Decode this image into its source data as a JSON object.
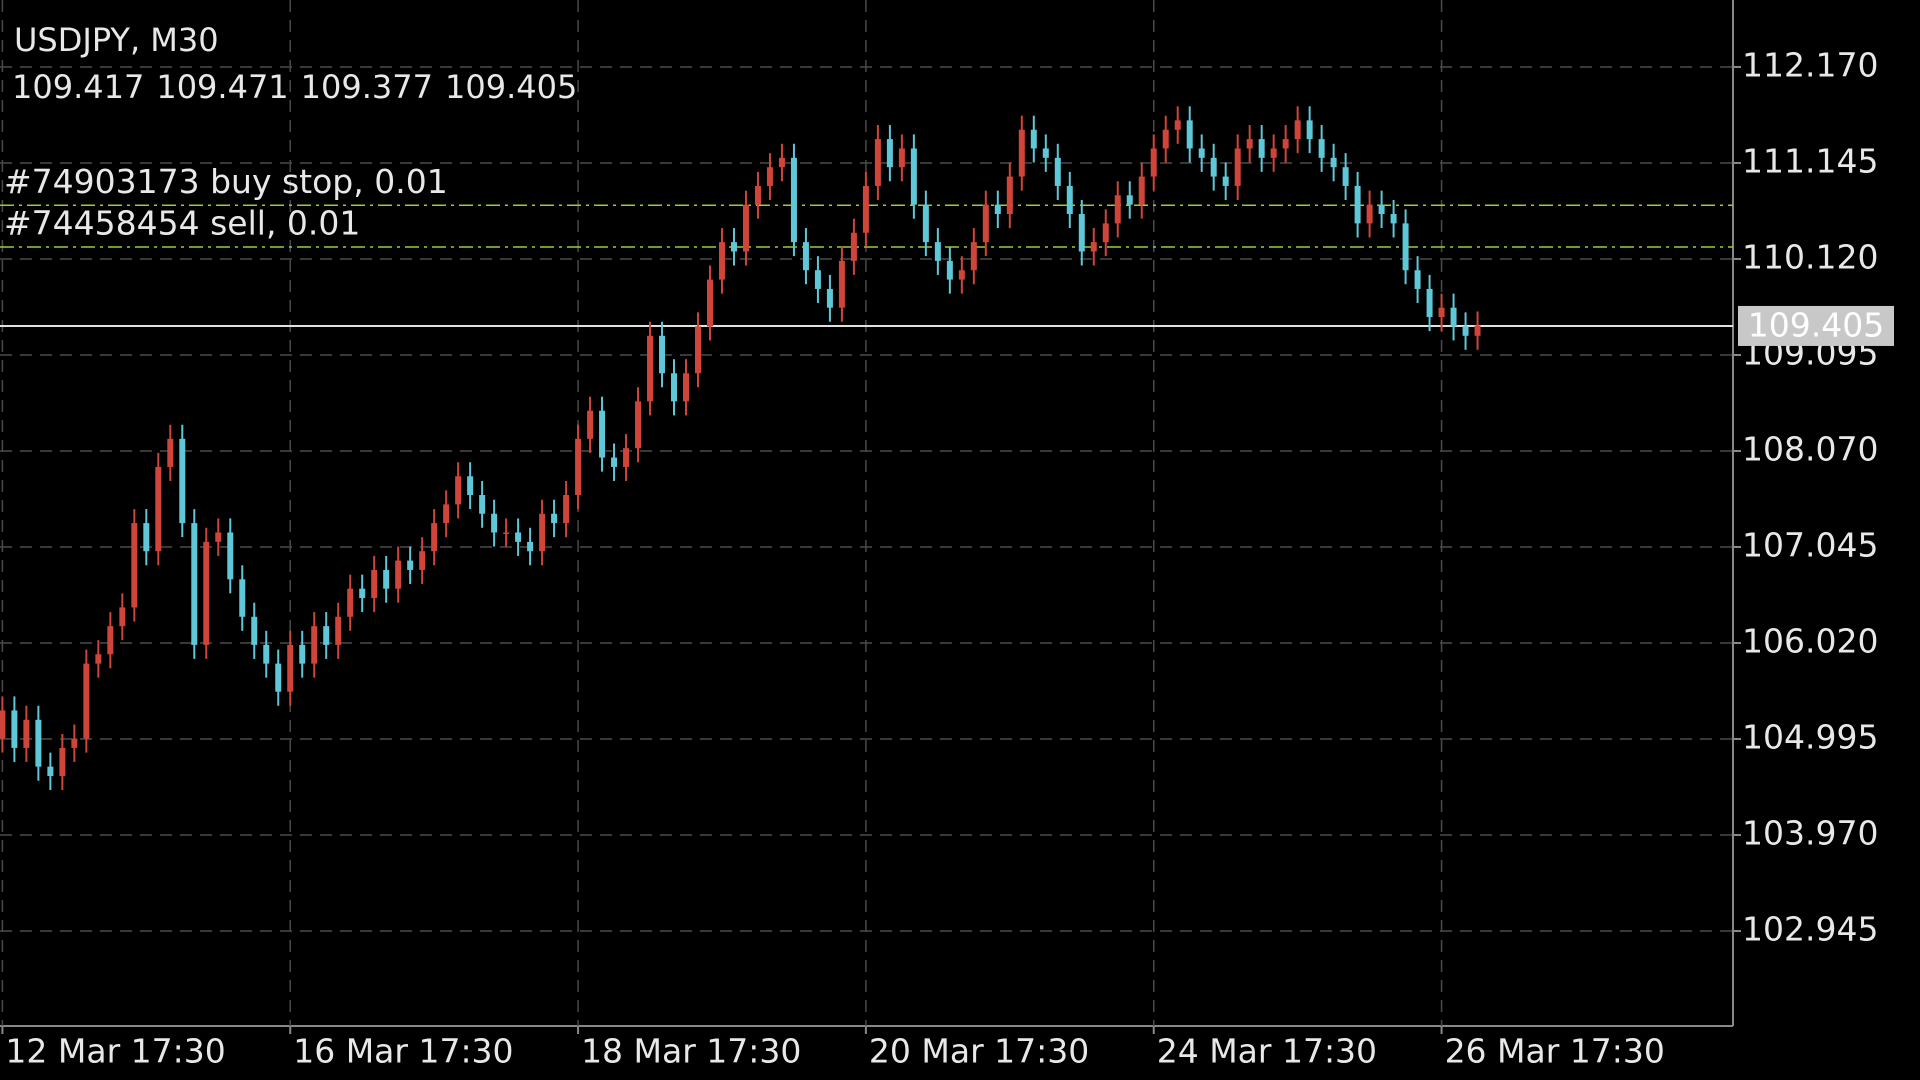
{
  "chart_data": {
    "type": "candlestick",
    "title": "USDJPY, M30",
    "ohlc_summary": [
      109.417,
      109.471,
      109.377,
      109.405
    ],
    "up_color": "#d0453a",
    "down_color": "#5ec8d8",
    "grid": true,
    "ylim": [
      101.931,
      112.885
    ],
    "yticks": [
      {
        "value": 112.17,
        "label": "112.170"
      },
      111.145,
      {
        "value": 110.12,
        "label": "110.120"
      },
      109.095,
      {
        "value": 108.07,
        "label": "108.070"
      },
      107.045,
      {
        "value": 106.02,
        "label": "106.020"
      },
      104.995,
      {
        "value": 103.97,
        "label": "103.970"
      },
      102.945
    ],
    "xlim": [
      -0.2,
      144.3
    ],
    "xticks": [
      {
        "value": 0,
        "label": "12 Mar 17:30"
      },
      {
        "value": 24,
        "label": "16 Mar 17:30"
      },
      {
        "value": 48,
        "label": "18 Mar 17:30"
      },
      {
        "value": 72,
        "label": "20 Mar 17:30"
      },
      {
        "value": 96,
        "label": "24 Mar 17:30"
      },
      {
        "value": 120,
        "label": "26 Mar 17:30"
      }
    ],
    "price_line": {
      "value": 109.405,
      "color": "#e0e0e0"
    },
    "order_color": "#9acd32",
    "orders": [
      {
        "label": "#74903173 buy stop, 0.01",
        "value": 110.693
      },
      {
        "label": "#74458454 sell, 0.01",
        "value": 110.248
      }
    ],
    "open": [
      105.0,
      105.3,
      104.9,
      105.2,
      104.7,
      104.6,
      104.9,
      105.0,
      105.8,
      105.9,
      106.2,
      106.4,
      107.3,
      107.0,
      107.9,
      108.2,
      107.3,
      106.0,
      107.1,
      107.2,
      106.7,
      106.3,
      106.0,
      105.8,
      105.5,
      106.0,
      105.8,
      106.2,
      106.0,
      106.3,
      106.6,
      106.5,
      106.8,
      106.6,
      106.9,
      106.8,
      107.0,
      107.3,
      107.5,
      107.8,
      107.6,
      107.4,
      107.2,
      107.2,
      107.1,
      107.0,
      107.4,
      107.3,
      107.6,
      108.2,
      108.5,
      108.0,
      107.9,
      108.1,
      108.6,
      109.3,
      108.9,
      108.6,
      108.9,
      109.4,
      109.9,
      110.3,
      110.2,
      110.7,
      110.9,
      111.1,
      111.2,
      110.3,
      110.0,
      109.8,
      109.6,
      110.1,
      110.4,
      110.9,
      111.4,
      111.1,
      111.3,
      110.7,
      110.3,
      110.1,
      109.9,
      110.0,
      110.3,
      110.7,
      110.6,
      111.0,
      111.5,
      111.3,
      111.2,
      110.9,
      110.6,
      110.2,
      110.3,
      110.5,
      110.8,
      110.7,
      111.0,
      111.3,
      111.5,
      111.6,
      111.3,
      111.2,
      111.0,
      110.9,
      111.3,
      111.4,
      111.2,
      111.3,
      111.4,
      111.6,
      111.4,
      111.2,
      111.1,
      110.9,
      110.5,
      110.7,
      110.6,
      110.5,
      110.0,
      109.8,
      109.5,
      109.6,
      109.4,
      109.3
    ],
    "high": [
      105.45,
      105.45,
      105.35,
      105.35,
      104.85,
      105.05,
      105.15,
      105.95,
      106.05,
      106.35,
      106.55,
      107.45,
      107.45,
      108.05,
      108.35,
      108.35,
      107.45,
      107.25,
      107.35,
      107.35,
      106.85,
      106.45,
      106.15,
      105.95,
      106.15,
      106.15,
      106.35,
      106.35,
      106.45,
      106.75,
      106.75,
      106.95,
      106.95,
      107.05,
      107.05,
      107.15,
      107.45,
      107.65,
      107.95,
      107.95,
      107.75,
      107.55,
      107.35,
      107.35,
      107.25,
      107.55,
      107.55,
      107.75,
      108.35,
      108.65,
      108.65,
      108.15,
      108.25,
      108.75,
      109.45,
      109.45,
      109.05,
      109.05,
      109.55,
      110.05,
      110.45,
      110.45,
      110.85,
      111.05,
      111.25,
      111.35,
      111.35,
      110.45,
      110.15,
      109.95,
      110.25,
      110.55,
      111.05,
      111.55,
      111.55,
      111.45,
      111.45,
      110.85,
      110.45,
      110.25,
      110.15,
      110.45,
      110.85,
      110.85,
      111.15,
      111.65,
      111.65,
      111.45,
      111.35,
      111.05,
      110.75,
      110.45,
      110.65,
      110.95,
      110.95,
      111.15,
      111.45,
      111.65,
      111.75,
      111.75,
      111.45,
      111.35,
      111.15,
      111.45,
      111.55,
      111.55,
      111.45,
      111.55,
      111.75,
      111.75,
      111.55,
      111.35,
      111.25,
      111.05,
      110.85,
      110.85,
      110.75,
      110.65,
      110.15,
      109.95,
      109.75,
      109.75,
      109.55,
      109.56
    ],
    "low": [
      104.85,
      104.75,
      104.75,
      104.55,
      104.45,
      104.45,
      104.75,
      104.85,
      105.65,
      105.75,
      106.05,
      106.25,
      106.85,
      106.85,
      107.75,
      107.15,
      105.85,
      105.85,
      106.95,
      106.55,
      106.15,
      105.85,
      105.65,
      105.35,
      105.35,
      105.65,
      105.65,
      105.85,
      105.85,
      106.15,
      106.35,
      106.35,
      106.45,
      106.45,
      106.65,
      106.65,
      106.85,
      107.15,
      107.35,
      107.45,
      107.25,
      107.05,
      107.05,
      106.95,
      106.85,
      106.85,
      107.15,
      107.15,
      107.45,
      108.05,
      107.85,
      107.75,
      107.75,
      107.95,
      108.45,
      108.75,
      108.45,
      108.45,
      108.75,
      109.25,
      109.75,
      110.05,
      110.05,
      110.55,
      110.75,
      110.95,
      110.15,
      109.85,
      109.65,
      109.45,
      109.45,
      109.95,
      110.25,
      110.75,
      110.95,
      110.95,
      110.55,
      110.15,
      109.95,
      109.75,
      109.75,
      109.85,
      110.15,
      110.45,
      110.45,
      110.85,
      111.15,
      111.05,
      110.75,
      110.45,
      110.05,
      110.05,
      110.15,
      110.35,
      110.55,
      110.55,
      110.85,
      111.15,
      111.35,
      111.15,
      111.05,
      110.85,
      110.75,
      110.75,
      111.15,
      111.05,
      111.05,
      111.15,
      111.25,
      111.25,
      111.05,
      110.95,
      110.75,
      110.35,
      110.35,
      110.45,
      110.35,
      109.85,
      109.65,
      109.35,
      109.35,
      109.25,
      109.15,
      109.15
    ],
    "close": [
      105.3,
      104.9,
      105.2,
      104.7,
      104.6,
      104.9,
      105.0,
      105.8,
      105.9,
      106.2,
      106.4,
      107.3,
      107.0,
      107.9,
      108.2,
      107.3,
      106.0,
      107.1,
      107.2,
      106.7,
      106.3,
      106.0,
      105.8,
      105.5,
      106.0,
      105.8,
      106.2,
      106.0,
      106.3,
      106.6,
      106.5,
      106.8,
      106.6,
      106.9,
      106.8,
      107.0,
      107.3,
      107.5,
      107.8,
      107.6,
      107.4,
      107.2,
      107.2,
      107.1,
      107.0,
      107.4,
      107.3,
      107.6,
      108.2,
      108.5,
      108.0,
      107.9,
      108.1,
      108.6,
      109.3,
      108.9,
      108.6,
      108.9,
      109.4,
      109.9,
      110.3,
      110.2,
      110.7,
      110.9,
      111.1,
      111.2,
      110.3,
      110.0,
      109.8,
      109.6,
      110.1,
      110.4,
      110.9,
      111.4,
      111.1,
      111.3,
      110.7,
      110.3,
      110.1,
      109.9,
      110.0,
      110.3,
      110.7,
      110.6,
      111.0,
      111.5,
      111.3,
      111.2,
      110.9,
      110.6,
      110.2,
      110.3,
      110.5,
      110.8,
      110.7,
      111.0,
      111.3,
      111.5,
      111.6,
      111.3,
      111.2,
      111.0,
      110.9,
      111.3,
      111.4,
      111.2,
      111.3,
      111.4,
      111.6,
      111.4,
      111.2,
      111.1,
      110.9,
      110.5,
      110.7,
      110.6,
      110.5,
      110.0,
      109.8,
      109.5,
      109.6,
      109.4,
      109.3,
      109.41
    ]
  }
}
